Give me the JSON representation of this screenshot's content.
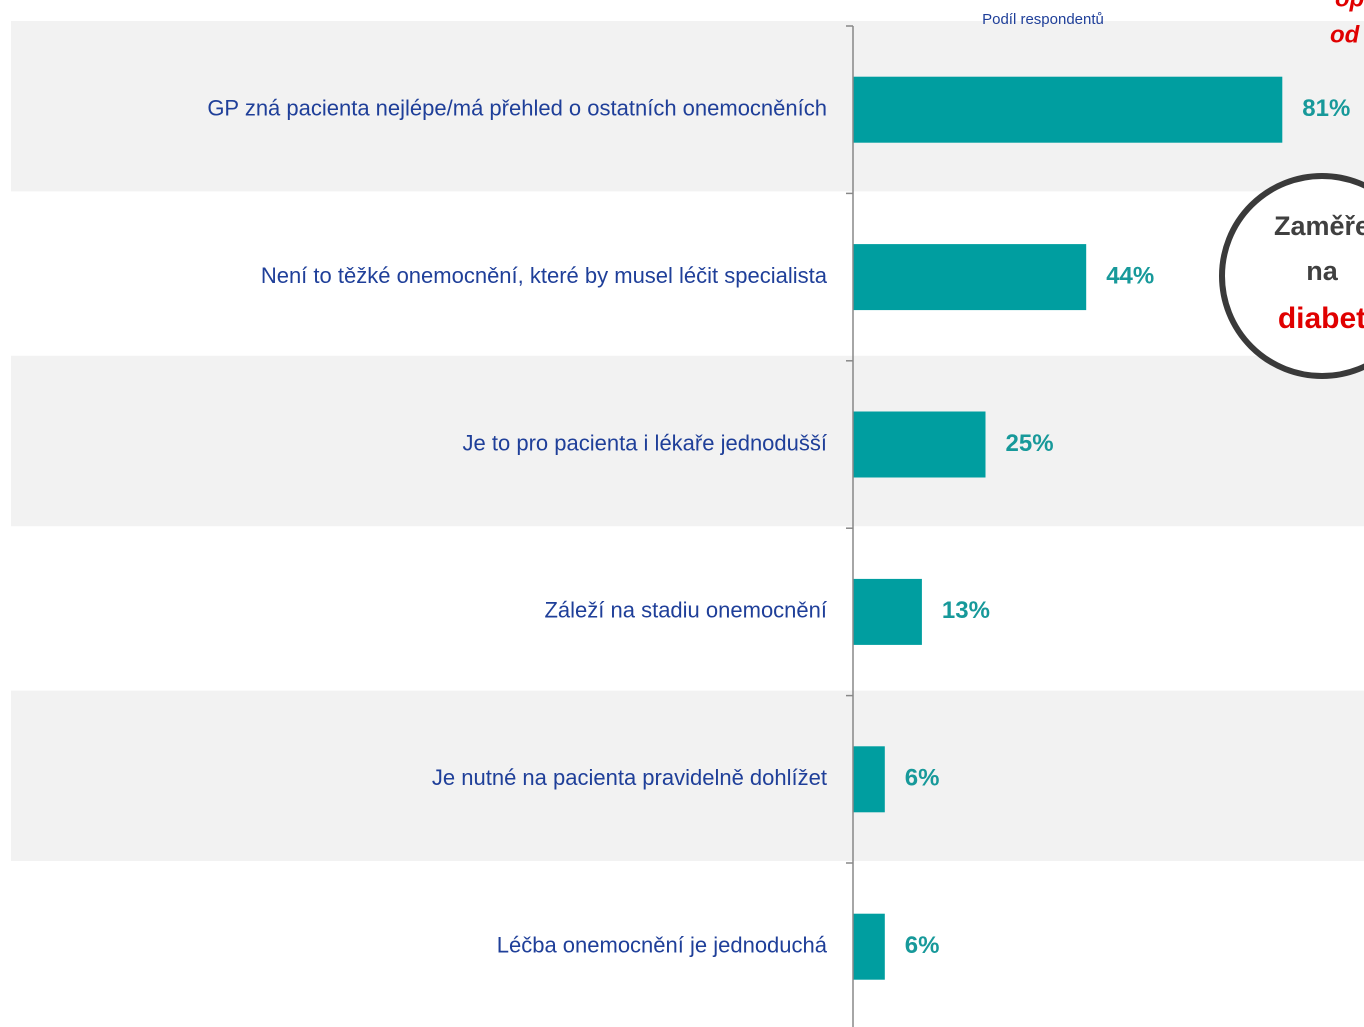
{
  "chart_data": {
    "type": "bar",
    "orientation": "horizontal",
    "title": "Podíl respondentů",
    "categories": [
      "GP zná pacienta nejlépe/má přehled o ostatních onemocněních",
      "Není to těžké onemocnění, které by musel léčit specialista",
      "Je to pro pacienta i lékaře jednodušší",
      "Záleží na stadiu onemocnění",
      "Je nutné na pacienta pravidelně dohlížet",
      "Léčba onemocnění je jednoduchá"
    ],
    "values": [
      81,
      44,
      25,
      13,
      6,
      6
    ],
    "value_labels": [
      "81%",
      "44%",
      "25%",
      "13%",
      "6%",
      "6%"
    ],
    "color": "#009e a0",
    "annotations": {
      "circle": [
        "Zaměře",
        "na",
        "diabet"
      ],
      "corner": [
        "op",
        "od"
      ]
    }
  }
}
